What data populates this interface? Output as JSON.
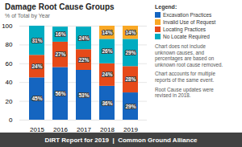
{
  "chart_data": {
    "type": "bar",
    "title": "Damage Root Cause Groups",
    "subtitle": "% of Total by Year",
    "categories": [
      "2015",
      "2016",
      "2017",
      "2018",
      "2019"
    ],
    "series": [
      {
        "name": "Excavation Practices",
        "color": "#1565C0",
        "values": [
          45,
          56,
          53,
          36,
          29
        ],
        "value_labels": [
          "45%",
          "56%",
          "53%",
          "36%",
          "29%"
        ]
      },
      {
        "name": "Locating Practices",
        "color": "#E64A19",
        "values": [
          24,
          27,
          22,
          24,
          28
        ],
        "value_labels": [
          "24%",
          "27%",
          "22%",
          "24%",
          "28%"
        ]
      },
      {
        "name": "No Locate Required",
        "color": "#00ACC1",
        "values": [
          31,
          16,
          24,
          26,
          29
        ],
        "value_labels": [
          "31%",
          "16%",
          "24%",
          "26%",
          "29%"
        ]
      },
      {
        "name": "Invalid Use of Request",
        "color": "#F9A825",
        "values": [
          0,
          0,
          0,
          14,
          14
        ],
        "value_labels": [
          null,
          null,
          null,
          "14%",
          "14%"
        ]
      }
    ],
    "stacked": true,
    "data_labels": true,
    "legend": "right",
    "legend_title": "Legend:",
    "annotations": [
      "Chart does not include\nunknown causes, and\npercentages are based on\nunknown root cause removed.",
      "Chart accounts for multiple\nreports of the same event.",
      "Root Cause updates were\nrevised in 2018.",
      "DIRT Report for 2019  |  Common Ground Alliance"
    ],
    "ylim": [
      0,
      100
    ],
    "yticks": [
      0,
      20,
      40,
      60,
      80,
      100
    ],
    "grid": true
  }
}
